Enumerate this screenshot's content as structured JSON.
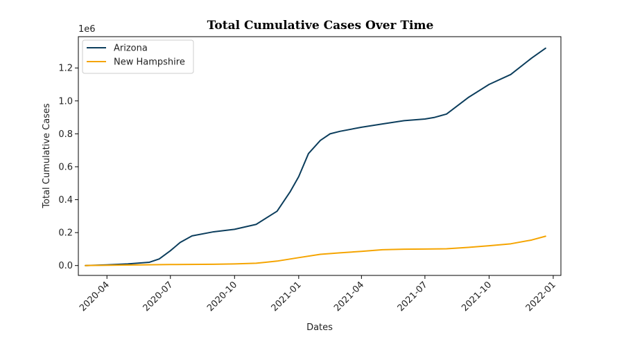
{
  "chart_data": {
    "type": "line",
    "title": "Total Cumulative Cases Over Time",
    "xlabel": "Dates",
    "ylabel": "Total Cumulative Cases",
    "y_offset_label": "1e6",
    "xlim": [
      "2020-02-20",
      "2022-01-12"
    ],
    "ylim": [
      -60000,
      1390000
    ],
    "x_ticks": [
      "2020-04-01",
      "2020-07-01",
      "2020-10-01",
      "2021-01-01",
      "2021-04-01",
      "2021-07-01",
      "2021-10-01",
      "2022-01-01"
    ],
    "x_tick_labels": [
      "2020-04",
      "2020-07",
      "2020-10",
      "2021-01",
      "2021-04",
      "2021-07",
      "2021-10",
      "2022-01"
    ],
    "y_ticks": [
      0,
      200000,
      400000,
      600000,
      800000,
      1000000,
      1200000
    ],
    "y_tick_labels": [
      "0.0",
      "0.2",
      "0.4",
      "0.6",
      "0.8",
      "1.0",
      "1.2"
    ],
    "grid": false,
    "legend_position": "top-left",
    "series": [
      {
        "name": "Arizona",
        "color": "#0b3d5c",
        "x": [
          "2020-03-01",
          "2020-04-01",
          "2020-05-01",
          "2020-06-01",
          "2020-06-15",
          "2020-07-01",
          "2020-07-15",
          "2020-08-01",
          "2020-09-01",
          "2020-10-01",
          "2020-11-01",
          "2020-12-01",
          "2020-12-20",
          "2021-01-01",
          "2021-01-15",
          "2021-02-01",
          "2021-02-15",
          "2021-03-01",
          "2021-04-01",
          "2021-05-01",
          "2021-06-01",
          "2021-07-01",
          "2021-07-15",
          "2021-08-01",
          "2021-09-01",
          "2021-10-01",
          "2021-11-01",
          "2021-12-01",
          "2021-12-21"
        ],
        "y": [
          0,
          4000,
          10000,
          20000,
          40000,
          90000,
          140000,
          180000,
          205000,
          220000,
          250000,
          330000,
          450000,
          540000,
          680000,
          760000,
          800000,
          815000,
          840000,
          860000,
          880000,
          890000,
          900000,
          920000,
          1020000,
          1100000,
          1160000,
          1260000,
          1320000
        ]
      },
      {
        "name": "New Hampshire",
        "color": "#f5a400",
        "x": [
          "2020-03-01",
          "2020-05-01",
          "2020-07-01",
          "2020-09-01",
          "2020-10-01",
          "2020-11-01",
          "2020-12-01",
          "2021-01-01",
          "2021-02-01",
          "2021-03-01",
          "2021-04-01",
          "2021-05-01",
          "2021-06-01",
          "2021-07-01",
          "2021-08-01",
          "2021-09-01",
          "2021-10-01",
          "2021-11-01",
          "2021-12-01",
          "2021-12-21"
        ],
        "y": [
          0,
          3000,
          6000,
          8000,
          10000,
          14000,
          27000,
          48000,
          68000,
          77000,
          86000,
          96000,
          99000,
          100000,
          102000,
          110000,
          120000,
          132000,
          155000,
          178000
        ]
      }
    ]
  }
}
